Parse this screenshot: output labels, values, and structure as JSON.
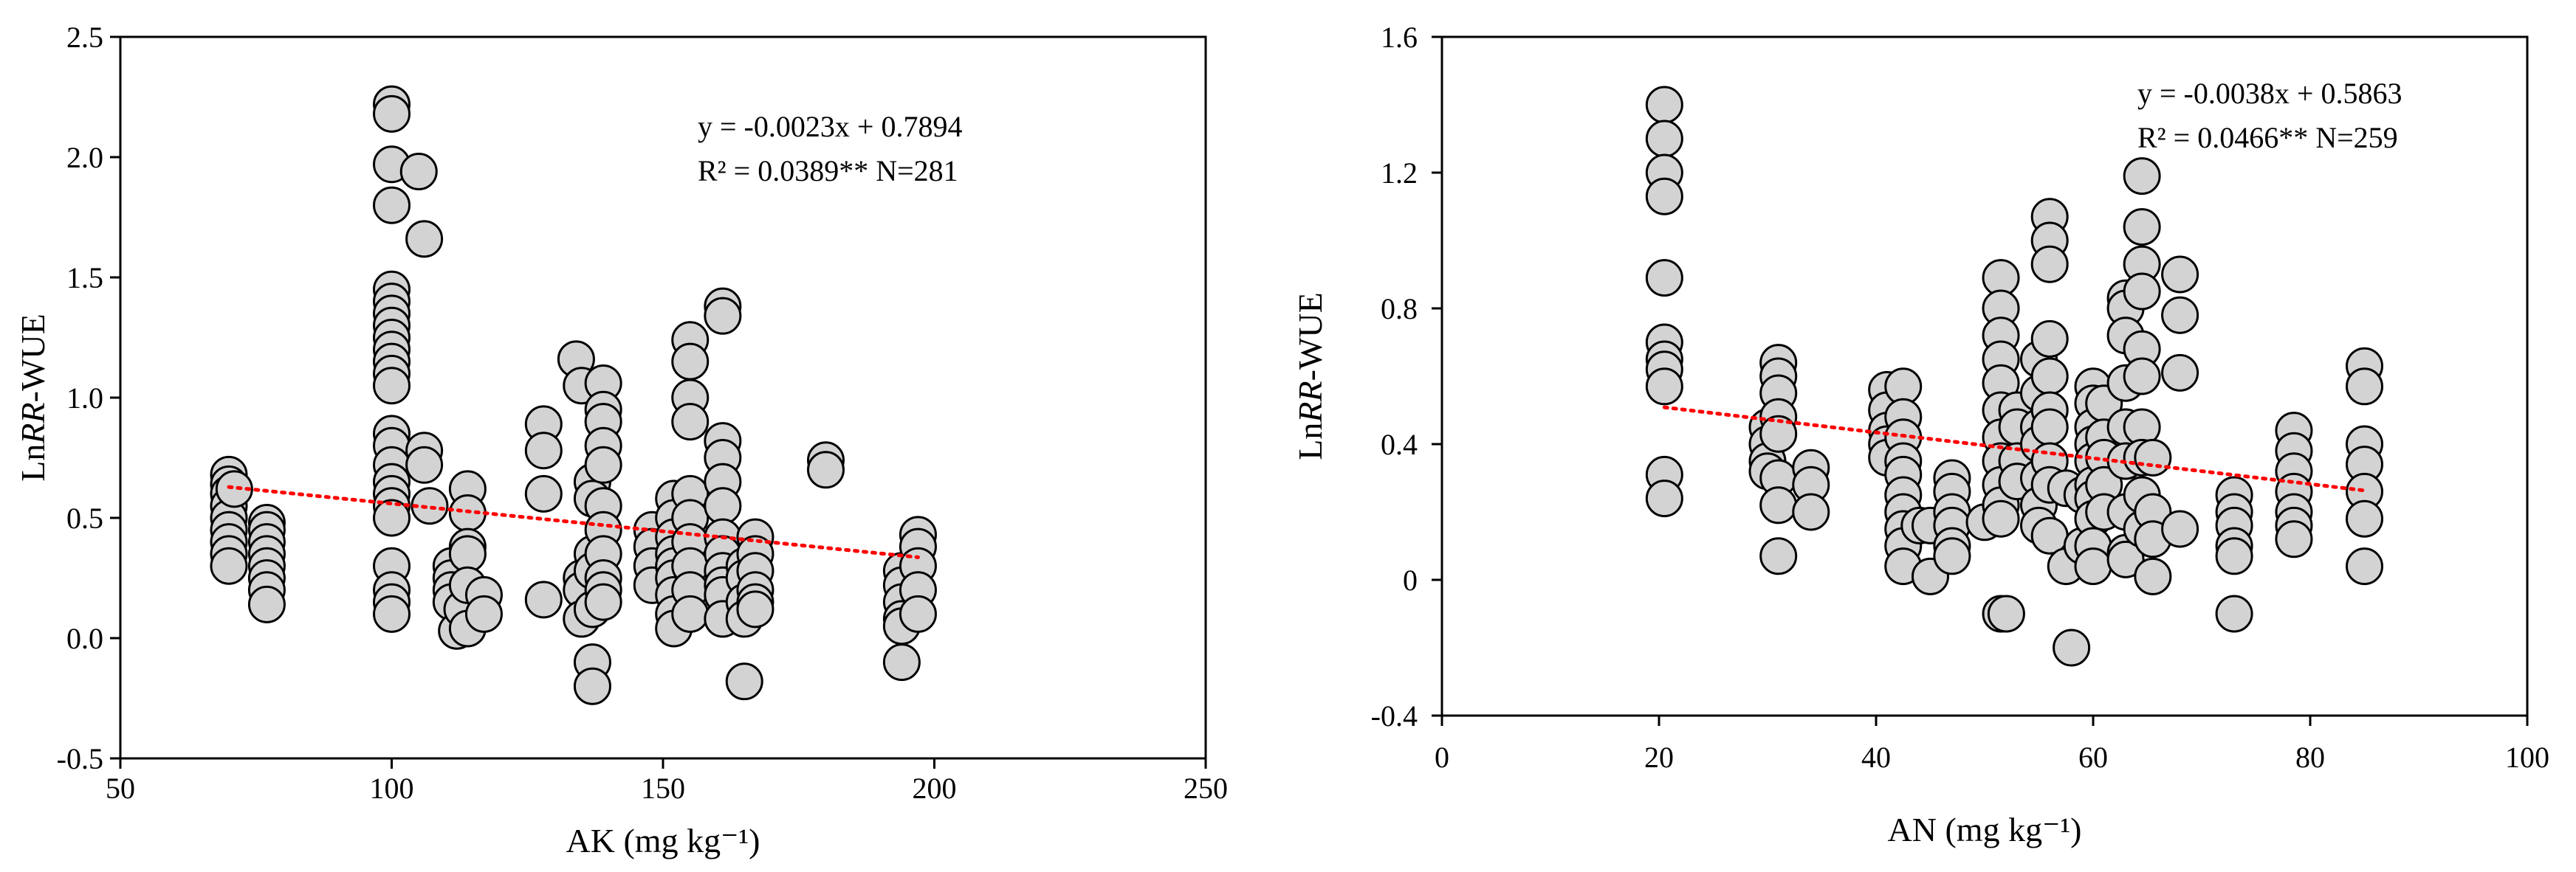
{
  "chart_data": [
    {
      "type": "scatter",
      "xlabel": "AK (mg kg⁻¹)",
      "ylabel_prefix": "Ln",
      "ylabel_italic": "RR",
      "ylabel_suffix": "-WUE",
      "xlim": [
        50,
        250
      ],
      "ylim": [
        -0.5,
        2.5
      ],
      "x_ticks": [
        "50",
        "100",
        "150",
        "200",
        "250"
      ],
      "y_ticks": [
        "-0.5",
        "0.0",
        "0.5",
        "1.0",
        "1.5",
        "2.0",
        "2.5"
      ],
      "x_tick_values": [
        50,
        100,
        150,
        200,
        250
      ],
      "y_tick_values": [
        -0.5,
        0,
        0.5,
        1.0,
        1.5,
        2.0,
        2.5
      ],
      "equation": "y = -0.0023x + 0.7894",
      "r2_text": "R² = 0.0389**  N=281",
      "trendline": {
        "slope": -0.0023,
        "intercept": 0.7894,
        "x_range": [
          70,
          197
        ],
        "color": "#ff0000"
      },
      "marker": {
        "fill": "#d3d3d3",
        "stroke": "#000000"
      },
      "points": [
        [
          70,
          0.68
        ],
        [
          70,
          0.64
        ],
        [
          70,
          0.6
        ],
        [
          70,
          0.55
        ],
        [
          70,
          0.5
        ],
        [
          70,
          0.45
        ],
        [
          70,
          0.4
        ],
        [
          70,
          0.35
        ],
        [
          70,
          0.3
        ],
        [
          71,
          0.62
        ],
        [
          77,
          0.48
        ],
        [
          77,
          0.45
        ],
        [
          77,
          0.4
        ],
        [
          77,
          0.35
        ],
        [
          77,
          0.3
        ],
        [
          77,
          0.25
        ],
        [
          77,
          0.2
        ],
        [
          77,
          0.14
        ],
        [
          100,
          2.22
        ],
        [
          100,
          2.18
        ],
        [
          100,
          1.97
        ],
        [
          100,
          1.8
        ],
        [
          100,
          1.45
        ],
        [
          100,
          1.4
        ],
        [
          100,
          1.35
        ],
        [
          100,
          1.3
        ],
        [
          100,
          1.25
        ],
        [
          100,
          1.2
        ],
        [
          100,
          1.15
        ],
        [
          100,
          1.1
        ],
        [
          100,
          1.05
        ],
        [
          100,
          0.85
        ],
        [
          100,
          0.8
        ],
        [
          100,
          0.72
        ],
        [
          100,
          0.65
        ],
        [
          100,
          0.6
        ],
        [
          100,
          0.55
        ],
        [
          100,
          0.5
        ],
        [
          100,
          0.3
        ],
        [
          100,
          0.2
        ],
        [
          100,
          0.15
        ],
        [
          100,
          0.1
        ],
        [
          105,
          1.94
        ],
        [
          106,
          1.66
        ],
        [
          106,
          0.78
        ],
        [
          106,
          0.72
        ],
        [
          107,
          0.55
        ],
        [
          111,
          0.3
        ],
        [
          111,
          0.25
        ],
        [
          111,
          0.2
        ],
        [
          111,
          0.15
        ],
        [
          112,
          0.03
        ],
        [
          113,
          0.12
        ],
        [
          114,
          0.62
        ],
        [
          114,
          0.52
        ],
        [
          114,
          0.38
        ],
        [
          114,
          0.35
        ],
        [
          114,
          0.22
        ],
        [
          114,
          0.04
        ],
        [
          117,
          0.18
        ],
        [
          117,
          0.1
        ],
        [
          128,
          0.89
        ],
        [
          128,
          0.78
        ],
        [
          128,
          0.6
        ],
        [
          128,
          0.16
        ],
        [
          134,
          1.16
        ],
        [
          135,
          1.05
        ],
        [
          135,
          0.25
        ],
        [
          135,
          0.2
        ],
        [
          135,
          0.08
        ],
        [
          137,
          0.65
        ],
        [
          137,
          0.58
        ],
        [
          137,
          0.35
        ],
        [
          137,
          0.28
        ],
        [
          137,
          0.12
        ],
        [
          137,
          -0.1
        ],
        [
          137,
          -0.2
        ],
        [
          139,
          1.06
        ],
        [
          139,
          0.95
        ],
        [
          139,
          0.9
        ],
        [
          139,
          0.8
        ],
        [
          139,
          0.72
        ],
        [
          139,
          0.55
        ],
        [
          139,
          0.45
        ],
        [
          139,
          0.35
        ],
        [
          139,
          0.25
        ],
        [
          139,
          0.2
        ],
        [
          139,
          0.15
        ],
        [
          148,
          0.45
        ],
        [
          148,
          0.38
        ],
        [
          148,
          0.3
        ],
        [
          148,
          0.22
        ],
        [
          152,
          0.58
        ],
        [
          152,
          0.5
        ],
        [
          152,
          0.42
        ],
        [
          152,
          0.35
        ],
        [
          152,
          0.3
        ],
        [
          152,
          0.25
        ],
        [
          152,
          0.18
        ],
        [
          152,
          0.1
        ],
        [
          152,
          0.04
        ],
        [
          155,
          1.24
        ],
        [
          155,
          1.15
        ],
        [
          155,
          1.0
        ],
        [
          155,
          0.9
        ],
        [
          155,
          0.6
        ],
        [
          155,
          0.5
        ],
        [
          155,
          0.4
        ],
        [
          155,
          0.3
        ],
        [
          155,
          0.2
        ],
        [
          155,
          0.1
        ],
        [
          161,
          1.38
        ],
        [
          161,
          1.34
        ],
        [
          161,
          0.82
        ],
        [
          161,
          0.75
        ],
        [
          161,
          0.65
        ],
        [
          161,
          0.55
        ],
        [
          161,
          0.42
        ],
        [
          161,
          0.35
        ],
        [
          161,
          0.28
        ],
        [
          161,
          0.22
        ],
        [
          161,
          0.18
        ],
        [
          161,
          0.08
        ],
        [
          165,
          0.3
        ],
        [
          165,
          0.25
        ],
        [
          165,
          0.15
        ],
        [
          165,
          0.08
        ],
        [
          165,
          -0.18
        ],
        [
          167,
          0.42
        ],
        [
          167,
          0.35
        ],
        [
          167,
          0.28
        ],
        [
          167,
          0.2
        ],
        [
          167,
          0.15
        ],
        [
          167,
          0.12
        ],
        [
          180,
          0.74
        ],
        [
          180,
          0.7
        ],
        [
          194,
          0.28
        ],
        [
          194,
          0.22
        ],
        [
          194,
          0.15
        ],
        [
          194,
          0.08
        ],
        [
          194,
          0.05
        ],
        [
          194,
          -0.1
        ],
        [
          197,
          0.43
        ],
        [
          197,
          0.38
        ],
        [
          197,
          0.3
        ],
        [
          197,
          0.2
        ],
        [
          197,
          0.1
        ]
      ]
    },
    {
      "type": "scatter",
      "xlabel": "AN (mg kg⁻¹)",
      "ylabel_prefix": "Ln",
      "ylabel_italic": "RR",
      "ylabel_suffix": "-WUE",
      "xlim": [
        0,
        100
      ],
      "ylim": [
        -0.4,
        1.6
      ],
      "x_ticks": [
        "0",
        "20",
        "40",
        "60",
        "80",
        "100"
      ],
      "y_ticks": [
        "-0.4",
        "0",
        "0.4",
        "0.8",
        "1.2",
        "1.6"
      ],
      "x_tick_values": [
        0,
        20,
        40,
        60,
        80,
        100
      ],
      "y_tick_values": [
        -0.4,
        0,
        0.4,
        0.8,
        1.2,
        1.6
      ],
      "equation": "y = -0.0038x + 0.5863",
      "r2_text": "R² = 0.0466**  N=259",
      "trendline": {
        "slope": -0.0038,
        "intercept": 0.5863,
        "x_range": [
          20.5,
          85
        ],
        "color": "#ff0000"
      },
      "marker": {
        "fill": "#d3d3d3",
        "stroke": "#000000"
      },
      "points": [
        [
          20.5,
          1.4
        ],
        [
          20.5,
          1.3
        ],
        [
          20.5,
          1.2
        ],
        [
          20.5,
          1.13
        ],
        [
          20.5,
          0.89
        ],
        [
          20.5,
          0.7
        ],
        [
          20.5,
          0.65
        ],
        [
          20.5,
          0.62
        ],
        [
          20.5,
          0.57
        ],
        [
          20.5,
          0.31
        ],
        [
          20.5,
          0.24
        ],
        [
          30,
          0.45
        ],
        [
          30,
          0.4
        ],
        [
          30,
          0.35
        ],
        [
          30,
          0.32
        ],
        [
          31,
          0.64
        ],
        [
          31,
          0.6
        ],
        [
          31,
          0.55
        ],
        [
          31,
          0.48
        ],
        [
          31,
          0.43
        ],
        [
          31,
          0.3
        ],
        [
          31,
          0.22
        ],
        [
          31,
          0.07
        ],
        [
          34,
          0.33
        ],
        [
          34,
          0.28
        ],
        [
          34,
          0.2
        ],
        [
          41,
          0.56
        ],
        [
          41,
          0.5
        ],
        [
          41,
          0.44
        ],
        [
          41,
          0.4
        ],
        [
          41,
          0.36
        ],
        [
          42.5,
          0.57
        ],
        [
          42.5,
          0.48
        ],
        [
          42.5,
          0.42
        ],
        [
          42.5,
          0.35
        ],
        [
          42.5,
          0.31
        ],
        [
          42.5,
          0.25
        ],
        [
          42.5,
          0.2
        ],
        [
          42.5,
          0.15
        ],
        [
          42.5,
          0.1
        ],
        [
          42.5,
          0.04
        ],
        [
          44,
          0.16
        ],
        [
          45,
          0.16
        ],
        [
          45,
          0.01
        ],
        [
          47,
          0.3
        ],
        [
          47,
          0.26
        ],
        [
          47,
          0.2
        ],
        [
          47,
          0.16
        ],
        [
          47,
          0.1
        ],
        [
          47,
          0.07
        ],
        [
          50,
          0.17
        ],
        [
          51.5,
          0.89
        ],
        [
          51.5,
          0.8
        ],
        [
          51.5,
          0.72
        ],
        [
          51.5,
          0.65
        ],
        [
          51.5,
          0.58
        ],
        [
          51.5,
          0.5
        ],
        [
          51.5,
          0.42
        ],
        [
          51.5,
          0.35
        ],
        [
          51.5,
          0.28
        ],
        [
          51.5,
          0.22
        ],
        [
          51.5,
          0.18
        ],
        [
          51.5,
          -0.1
        ],
        [
          52,
          -0.1
        ],
        [
          53,
          0.5
        ],
        [
          53,
          0.45
        ],
        [
          53,
          0.35
        ],
        [
          53,
          0.29
        ],
        [
          55,
          0.65
        ],
        [
          55,
          0.55
        ],
        [
          55,
          0.45
        ],
        [
          55,
          0.4
        ],
        [
          55,
          0.3
        ],
        [
          55,
          0.22
        ],
        [
          55,
          0.16
        ],
        [
          56,
          1.07
        ],
        [
          56,
          1.0
        ],
        [
          56,
          0.93
        ],
        [
          56,
          0.71
        ],
        [
          56,
          0.6
        ],
        [
          56,
          0.5
        ],
        [
          56,
          0.45
        ],
        [
          56,
          0.35
        ],
        [
          56,
          0.28
        ],
        [
          56,
          0.13
        ],
        [
          57.5,
          0.27
        ],
        [
          57.5,
          0.04
        ],
        [
          58,
          -0.2
        ],
        [
          59,
          0.25
        ],
        [
          59,
          0.1
        ],
        [
          60,
          0.57
        ],
        [
          60,
          0.52
        ],
        [
          60,
          0.45
        ],
        [
          60,
          0.4
        ],
        [
          60,
          0.35
        ],
        [
          60,
          0.28
        ],
        [
          60,
          0.24
        ],
        [
          60,
          0.18
        ],
        [
          60,
          0.1
        ],
        [
          60,
          0.04
        ],
        [
          61,
          0.52
        ],
        [
          61,
          0.42
        ],
        [
          61,
          0.36
        ],
        [
          61,
          0.28
        ],
        [
          61,
          0.2
        ],
        [
          63,
          0.83
        ],
        [
          63,
          0.8
        ],
        [
          63,
          0.72
        ],
        [
          63,
          0.58
        ],
        [
          63,
          0.45
        ],
        [
          63,
          0.35
        ],
        [
          63,
          0.2
        ],
        [
          63,
          0.08
        ],
        [
          63,
          0.06
        ],
        [
          64.5,
          1.19
        ],
        [
          64.5,
          1.04
        ],
        [
          64.5,
          0.93
        ],
        [
          64.5,
          0.85
        ],
        [
          64.5,
          0.68
        ],
        [
          64.5,
          0.6
        ],
        [
          64.5,
          0.45
        ],
        [
          64.5,
          0.36
        ],
        [
          64.5,
          0.25
        ],
        [
          64.5,
          0.15
        ],
        [
          65.5,
          0.36
        ],
        [
          65.5,
          0.2
        ],
        [
          65.5,
          0.12
        ],
        [
          65.5,
          0.01
        ],
        [
          68,
          0.9
        ],
        [
          68,
          0.78
        ],
        [
          68,
          0.61
        ],
        [
          68,
          0.15
        ],
        [
          73,
          0.25
        ],
        [
          73,
          0.2
        ],
        [
          73,
          0.16
        ],
        [
          73,
          0.1
        ],
        [
          73,
          0.07
        ],
        [
          73,
          -0.1
        ],
        [
          78.5,
          0.44
        ],
        [
          78.5,
          0.38
        ],
        [
          78.5,
          0.32
        ],
        [
          78.5,
          0.26
        ],
        [
          78.5,
          0.2
        ],
        [
          78.5,
          0.16
        ],
        [
          78.5,
          0.12
        ],
        [
          85,
          0.63
        ],
        [
          85,
          0.57
        ],
        [
          85,
          0.4
        ],
        [
          85,
          0.34
        ],
        [
          85,
          0.26
        ],
        [
          85,
          0.18
        ],
        [
          85,
          0.04
        ]
      ]
    }
  ]
}
